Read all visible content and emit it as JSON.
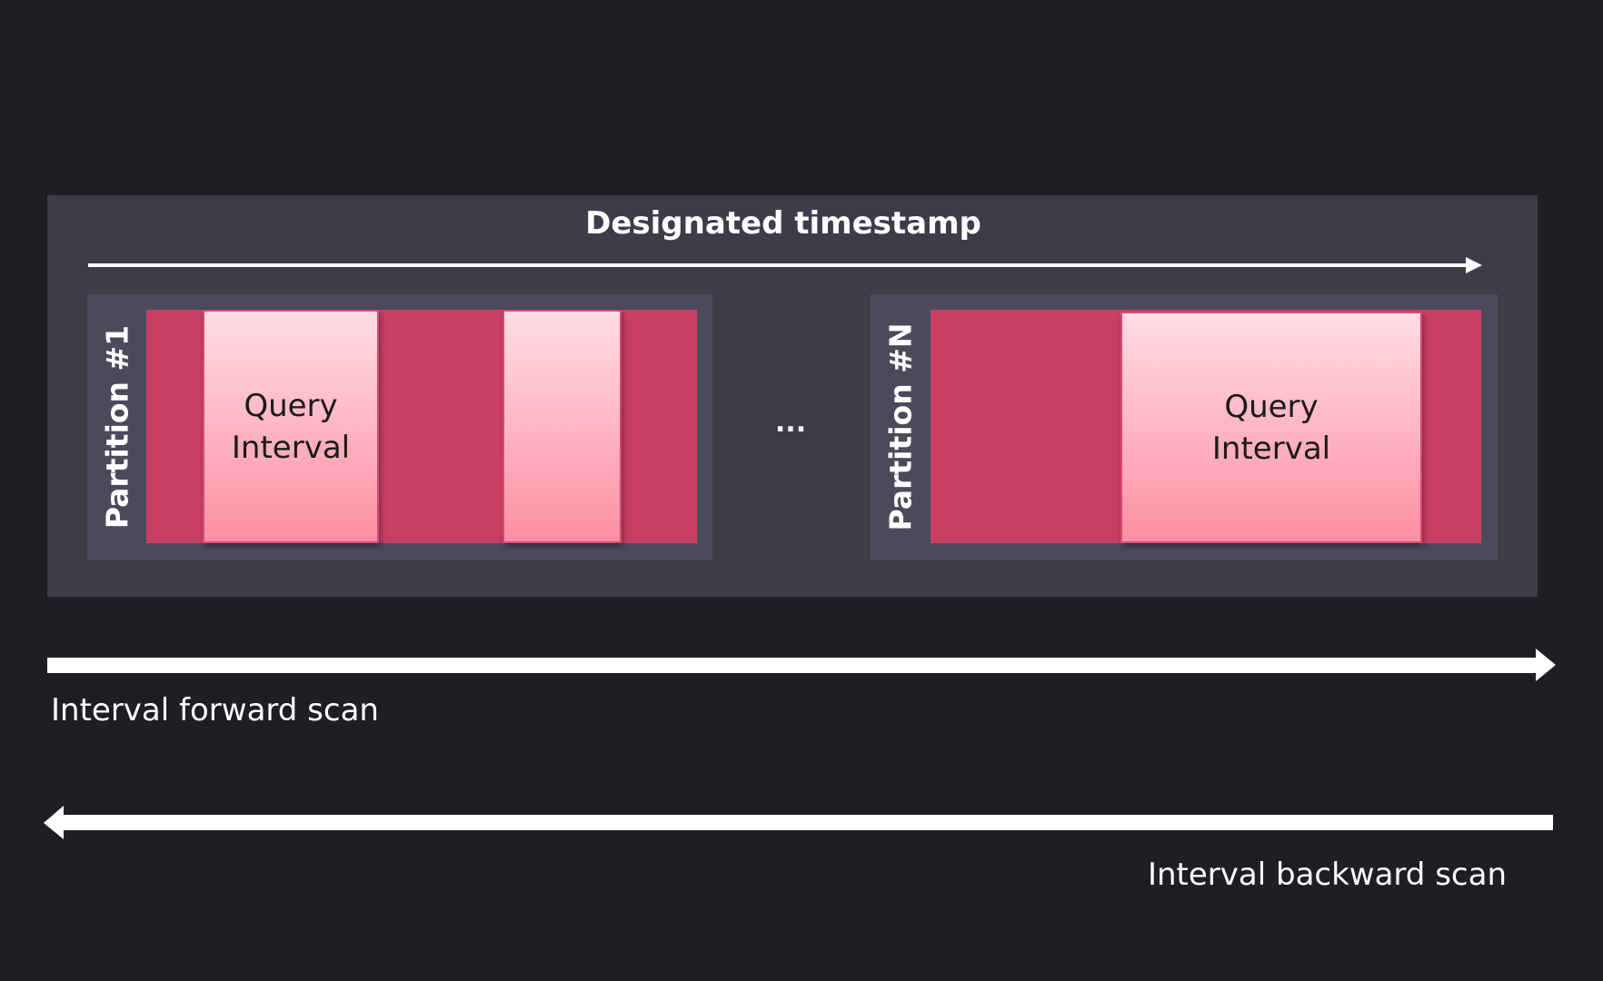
{
  "title": "Designated timestamp",
  "partitions": [
    {
      "label": "Partition #1",
      "query_interval": [
        "Query",
        "Interval"
      ]
    },
    {
      "label": "Partition #N",
      "query_interval": [
        "Query",
        "Interval"
      ]
    }
  ],
  "ellipsis": "...",
  "forward_label": "Interval forward scan",
  "backward_label": "Interval backward scan",
  "colors": {
    "background": "#1e1f24",
    "panel": "#3e3c48",
    "partition": "#4c4a5a",
    "data": "#c83f64",
    "query": "#ff9fb3"
  }
}
